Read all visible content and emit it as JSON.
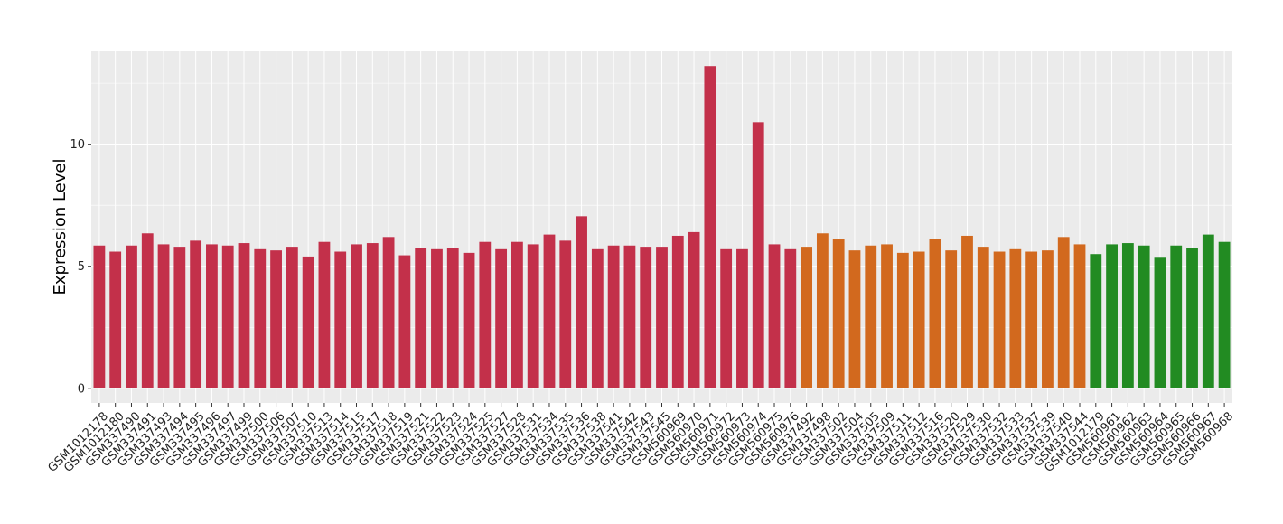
{
  "chart_data": {
    "type": "bar",
    "title": "",
    "xlabel": "",
    "ylabel": "Expression Level",
    "ylim": [
      -0.6,
      13.8
    ],
    "yticks": [
      0,
      5,
      10
    ],
    "grid": true,
    "legend": "none",
    "background_color": "#ebebeb",
    "grid_color": "#ffffff",
    "categories": [
      "GSM1012178",
      "GSM1012180",
      "GSM337490",
      "GSM337491",
      "GSM337493",
      "GSM337494",
      "GSM337495",
      "GSM337496",
      "GSM337497",
      "GSM337499",
      "GSM337500",
      "GSM337506",
      "GSM337507",
      "GSM337510",
      "GSM337513",
      "GSM337514",
      "GSM337515",
      "GSM337517",
      "GSM337518",
      "GSM337519",
      "GSM337521",
      "GSM337522",
      "GSM337523",
      "GSM337524",
      "GSM337525",
      "GSM337527",
      "GSM337528",
      "GSM337531",
      "GSM337534",
      "GSM337535",
      "GSM337536",
      "GSM337538",
      "GSM337541",
      "GSM337542",
      "GSM337543",
      "GSM337545",
      "GSM560969",
      "GSM560970",
      "GSM560971",
      "GSM560972",
      "GSM560973",
      "GSM560974",
      "GSM560975",
      "GSM560976",
      "GSM337492",
      "GSM337498",
      "GSM337502",
      "GSM337504",
      "GSM337505",
      "GSM337509",
      "GSM337511",
      "GSM337512",
      "GSM337516",
      "GSM337520",
      "GSM337529",
      "GSM337530",
      "GSM337532",
      "GSM337533",
      "GSM337537",
      "GSM337539",
      "GSM337540",
      "GSM337544",
      "GSM1012179",
      "GSM560961",
      "GSM560962",
      "GSM560963",
      "GSM560964",
      "GSM560965",
      "GSM560966",
      "GSM560967",
      "GSM560968"
    ],
    "values": [
      5.85,
      5.6,
      5.85,
      6.35,
      5.9,
      5.8,
      6.05,
      5.9,
      5.85,
      5.95,
      5.7,
      5.65,
      5.8,
      5.4,
      6.0,
      5.6,
      5.9,
      5.95,
      6.2,
      5.45,
      5.75,
      5.7,
      5.75,
      5.55,
      6.0,
      5.7,
      6.0,
      5.9,
      6.3,
      6.05,
      7.05,
      5.7,
      5.85,
      5.85,
      5.8,
      5.8,
      6.25,
      6.4,
      13.2,
      5.7,
      5.7,
      10.9,
      5.9,
      5.7,
      5.8,
      6.35,
      6.1,
      5.65,
      5.85,
      5.9,
      5.55,
      5.6,
      6.1,
      5.65,
      6.25,
      5.8,
      5.6,
      5.7,
      5.6,
      5.65,
      6.2,
      5.9,
      5.5,
      5.9,
      5.95,
      5.85,
      5.35,
      5.85,
      5.75,
      6.3,
      6.0
    ],
    "groups": [
      {
        "count": 44,
        "color": "#c3304a"
      },
      {
        "count": 18,
        "color": "#d2691e"
      },
      {
        "count": 9,
        "color": "#228b22"
      }
    ]
  }
}
